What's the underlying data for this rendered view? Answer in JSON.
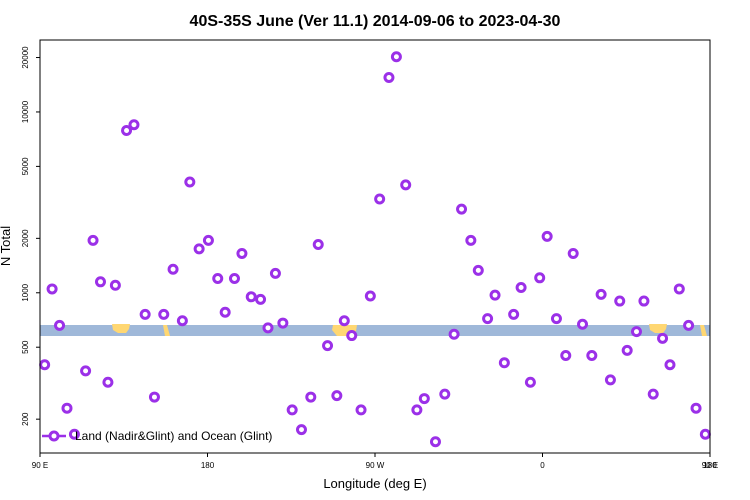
{
  "chart_data": {
    "type": "scatter",
    "title": "40S-35S June (Ver 11.1)   2014-09-06 to 2023-04-30",
    "xlabel": "Longitude (deg E)",
    "ylabel": "N Total",
    "y_scale": "log",
    "x_range": [
      90,
      450
    ],
    "y_range": [
      130,
      25000
    ],
    "x_ticks": [
      {
        "value": 90,
        "label": "90 E"
      },
      {
        "value": 180,
        "label": "180"
      },
      {
        "value": 270,
        "label": "90 W"
      },
      {
        "value": 360,
        "label": "0"
      },
      {
        "value": 450,
        "label": "90 E"
      },
      {
        "value": 540,
        "label": "180"
      }
    ],
    "y_ticks": [
      {
        "value": 200,
        "label": "200"
      },
      {
        "value": 500,
        "label": "500"
      },
      {
        "value": 1000,
        "label": "1000"
      },
      {
        "value": 2000,
        "label": "2000"
      },
      {
        "value": 5000,
        "label": "5000"
      },
      {
        "value": 10000,
        "label": "10000"
      },
      {
        "value": 20000,
        "label": "20000"
      }
    ],
    "legend": {
      "label": "Land (Nadir&Glint) and Ocean (Glint)",
      "position": "bottom-left"
    },
    "series": [
      {
        "marker_color": "#9b30e8",
        "points": [
          [
            92.5,
            400
          ],
          [
            96.5,
            1050
          ],
          [
            100.5,
            660
          ],
          [
            104.5,
            230
          ],
          [
            108.5,
            165
          ],
          [
            114.5,
            370
          ],
          [
            118.5,
            1950
          ],
          [
            122.5,
            1150
          ],
          [
            126.5,
            320
          ],
          [
            130.5,
            1100
          ],
          [
            136.5,
            7900
          ],
          [
            140.5,
            8500
          ],
          [
            146.5,
            760
          ],
          [
            151.5,
            265
          ],
          [
            156.5,
            760
          ],
          [
            161.5,
            1350
          ],
          [
            166.5,
            700
          ],
          [
            170.5,
            4100
          ],
          [
            175.5,
            1750
          ],
          [
            180.5,
            1950
          ],
          [
            185.5,
            1200
          ],
          [
            189.5,
            780
          ],
          [
            194.5,
            1200
          ],
          [
            198.5,
            1650
          ],
          [
            203.5,
            950
          ],
          [
            208.5,
            920
          ],
          [
            212.5,
            640
          ],
          [
            216.5,
            1280
          ],
          [
            220.5,
            680
          ],
          [
            225.5,
            225
          ],
          [
            230.5,
            175
          ],
          [
            235.5,
            265
          ],
          [
            239.5,
            1850
          ],
          [
            244.5,
            510
          ],
          [
            249.5,
            270
          ],
          [
            253.5,
            700
          ],
          [
            257.5,
            580
          ],
          [
            262.5,
            225
          ],
          [
            267.5,
            960
          ],
          [
            272.5,
            3300
          ],
          [
            277.5,
            15500
          ],
          [
            281.5,
            20200
          ],
          [
            286.5,
            3950
          ],
          [
            292.5,
            225
          ],
          [
            296.5,
            260
          ],
          [
            302.5,
            150
          ],
          [
            307.5,
            275
          ],
          [
            312.5,
            590
          ],
          [
            316.5,
            2900
          ],
          [
            321.5,
            1950
          ],
          [
            325.5,
            1330
          ],
          [
            330.5,
            720
          ],
          [
            334.5,
            970
          ],
          [
            339.5,
            410
          ],
          [
            344.5,
            760
          ],
          [
            348.5,
            1070
          ],
          [
            353.5,
            320
          ],
          [
            358.5,
            1210
          ],
          [
            362.5,
            2050
          ],
          [
            367.5,
            720
          ],
          [
            372.5,
            450
          ],
          [
            376.5,
            1650
          ],
          [
            381.5,
            670
          ],
          [
            386.5,
            450
          ],
          [
            391.5,
            980
          ],
          [
            396.5,
            330
          ],
          [
            401.5,
            900
          ],
          [
            405.5,
            480
          ],
          [
            410.5,
            610
          ],
          [
            414.5,
            900
          ],
          [
            419.5,
            275
          ],
          [
            424.5,
            560
          ],
          [
            428.5,
            400
          ],
          [
            433.5,
            1050
          ],
          [
            438.5,
            660
          ],
          [
            442.5,
            230
          ],
          [
            447.5,
            165
          ]
        ]
      }
    ]
  }
}
